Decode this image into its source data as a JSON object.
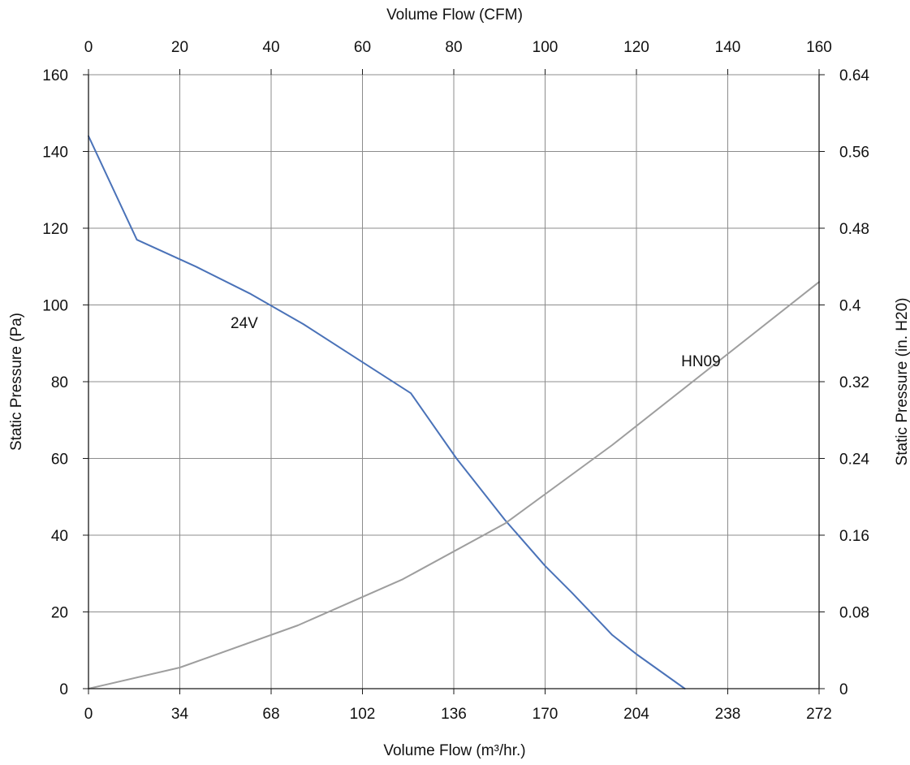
{
  "chart_data": {
    "type": "line",
    "x_bottom": {
      "label": "Volume Flow (m³/hr.)",
      "ticks": [
        "0",
        "34",
        "68",
        "102",
        "136",
        "170",
        "204",
        "238",
        "272"
      ],
      "range": [
        0,
        272
      ]
    },
    "x_top": {
      "label": "Volume Flow (CFM)",
      "ticks": [
        "0",
        "20",
        "40",
        "60",
        "80",
        "100",
        "120",
        "140",
        "160"
      ],
      "range": [
        0,
        160
      ]
    },
    "y_left": {
      "label": "Static Pressure (Pa)",
      "ticks": [
        "0",
        "20",
        "40",
        "60",
        "80",
        "100",
        "120",
        "140",
        "160"
      ],
      "range": [
        0,
        160
      ]
    },
    "y_right": {
      "label": "Static Pressure (in. H20)",
      "ticks": [
        "0",
        "0.08",
        "0.16",
        "0.24",
        "0.32",
        "0.4",
        "0.48",
        "0.56",
        "0.64"
      ],
      "range": [
        0,
        0.64
      ]
    },
    "grid": true,
    "series": [
      {
        "name": "24V",
        "color": "#4a72b8",
        "x": [
          0,
          18,
          40,
          60,
          80,
          100,
          120,
          137,
          155,
          170,
          180,
          195,
          204,
          222
        ],
        "y": [
          144,
          117,
          110,
          103,
          95,
          86,
          77,
          60,
          44,
          32,
          25,
          14,
          9,
          0
        ]
      },
      {
        "name": "HN09",
        "color": "#9e9e9e",
        "x": [
          0,
          34,
          78,
          117,
          155,
          195,
          272
        ],
        "y": [
          0,
          5.5,
          16.5,
          28.5,
          43,
          63.5,
          106
        ]
      }
    ],
    "annotations": [
      {
        "text": "24V",
        "x": 58,
        "y": 94
      },
      {
        "text": "HN09",
        "x": 228,
        "y": 84
      }
    ]
  }
}
